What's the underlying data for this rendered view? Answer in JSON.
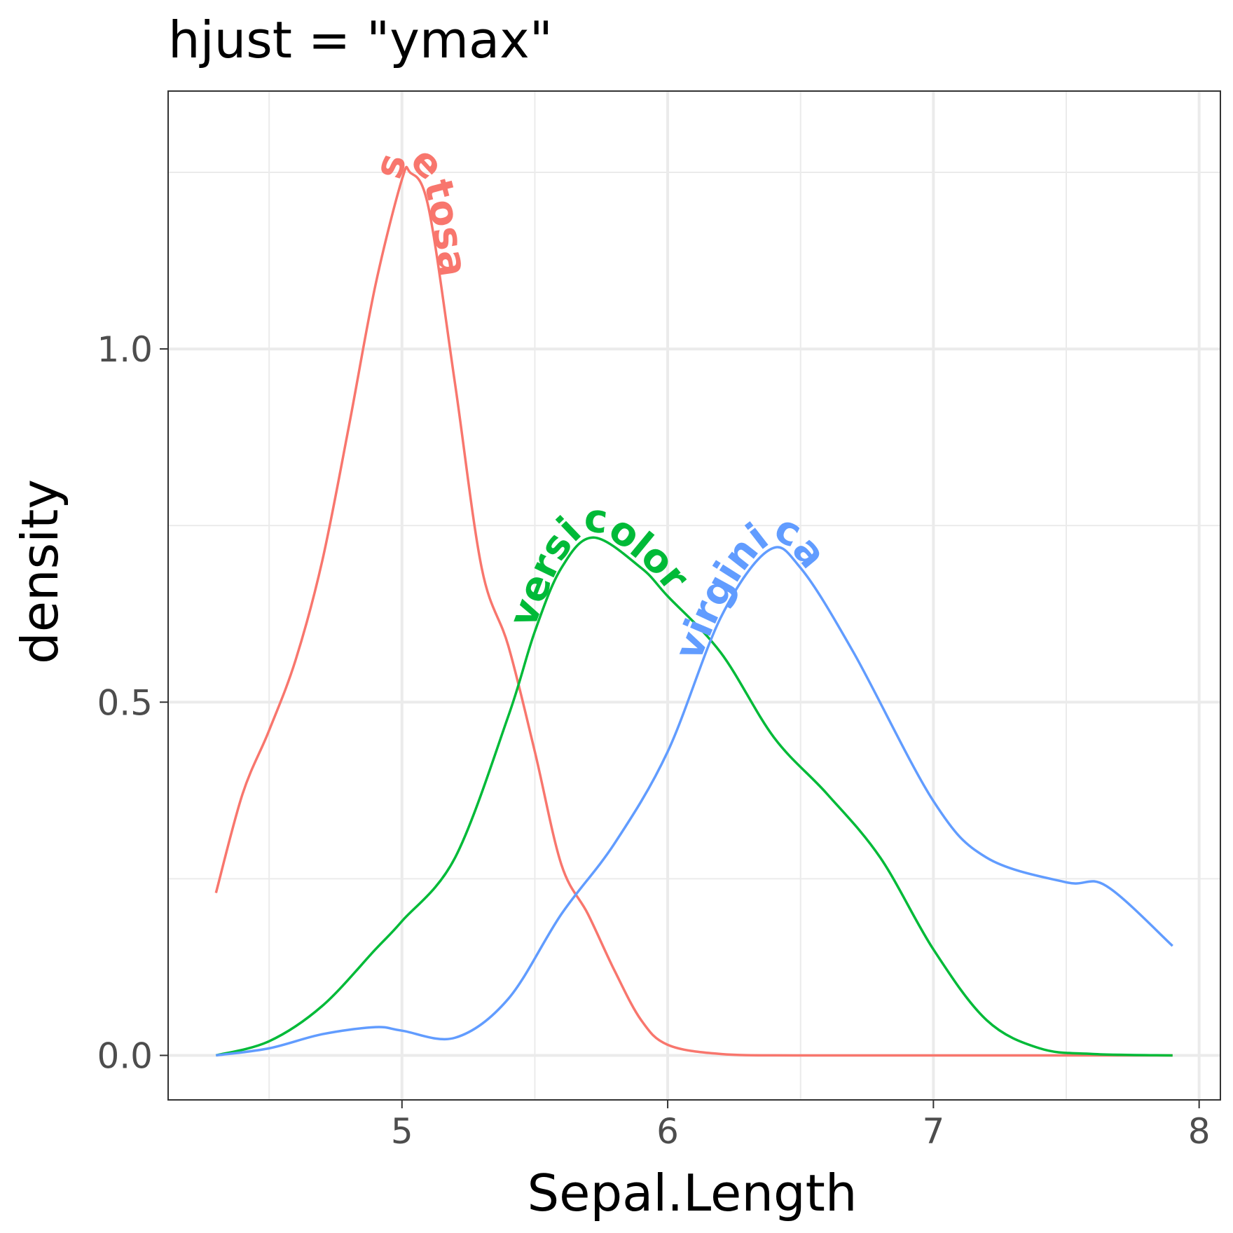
{
  "chart_data": {
    "type": "line",
    "title": "hjust = \"ymax\"",
    "xlabel": "Sepal.Length",
    "ylabel": "density",
    "xlim": [
      4.12,
      8.08
    ],
    "ylim": [
      -0.063,
      1.365
    ],
    "x_ticks": [
      5,
      6,
      7,
      8
    ],
    "x_tick_labels": [
      "5",
      "6",
      "7",
      "8"
    ],
    "y_ticks": [
      0.0,
      0.5,
      1.0
    ],
    "y_tick_labels": [
      "0.0",
      "0.5",
      "1.0"
    ],
    "grid": true,
    "legend": "none",
    "series": [
      {
        "name": "setosa",
        "color": "#F8766D",
        "x": [
          4.3,
          4.4,
          4.5,
          4.6,
          4.7,
          4.8,
          4.9,
          5.0,
          5.03,
          5.1,
          5.2,
          5.3,
          5.4,
          5.5,
          5.6,
          5.7,
          5.8,
          5.9,
          6.0,
          6.2,
          6.5,
          7.0,
          7.5,
          7.9
        ],
        "y": [
          0.23,
          0.37,
          0.46,
          0.56,
          0.7,
          0.89,
          1.09,
          1.24,
          1.25,
          1.2,
          0.95,
          0.69,
          0.58,
          0.43,
          0.27,
          0.2,
          0.12,
          0.05,
          0.015,
          0.002,
          0.0,
          0.0,
          0.0,
          0.0
        ]
      },
      {
        "name": "versicolor",
        "color": "#00BA38",
        "x": [
          4.3,
          4.5,
          4.7,
          4.9,
          5.0,
          5.2,
          5.4,
          5.5,
          5.6,
          5.72,
          5.9,
          6.0,
          6.2,
          6.4,
          6.6,
          6.8,
          7.0,
          7.2,
          7.4,
          7.6,
          7.9
        ],
        "y": [
          0.0,
          0.02,
          0.07,
          0.15,
          0.19,
          0.28,
          0.48,
          0.6,
          0.69,
          0.733,
          0.69,
          0.65,
          0.57,
          0.45,
          0.37,
          0.28,
          0.15,
          0.05,
          0.01,
          0.002,
          0.0
        ]
      },
      {
        "name": "virginica",
        "color": "#619CFF",
        "x": [
          4.3,
          4.5,
          4.7,
          4.9,
          5.0,
          5.2,
          5.4,
          5.6,
          5.8,
          6.0,
          6.2,
          6.38,
          6.5,
          6.7,
          7.0,
          7.2,
          7.5,
          7.65,
          7.9
        ],
        "y": [
          0.0,
          0.01,
          0.03,
          0.04,
          0.035,
          0.025,
          0.08,
          0.2,
          0.3,
          0.43,
          0.62,
          0.715,
          0.69,
          0.57,
          0.36,
          0.28,
          0.245,
          0.24,
          0.155
        ]
      }
    ]
  }
}
